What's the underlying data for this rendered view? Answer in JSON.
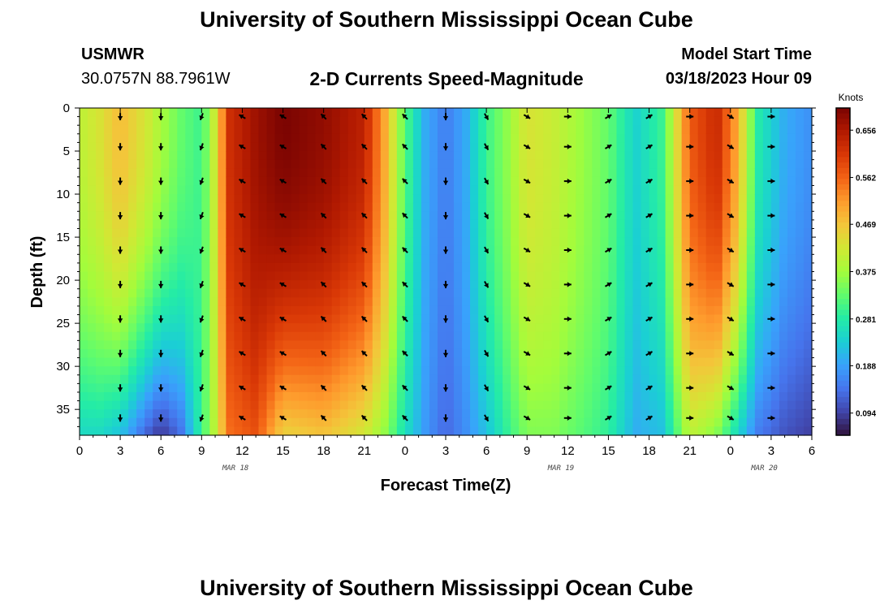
{
  "header": {
    "title": "University of Southern Mississippi Ocean Cube",
    "station_id": "USMWR",
    "station_location": "30.0757N  88.7961W",
    "subtitle": "2-D Currents Speed-Magnitude",
    "model_start_label": "Model Start Time",
    "model_start_time": "03/18/2023 Hour 09"
  },
  "footer": {
    "title": "University of Southern Mississippi Ocean Cube"
  },
  "chart_data": {
    "type": "heatmap",
    "title": "2-D Currents Speed-Magnitude",
    "xlabel": "Forecast Time(Z)",
    "ylabel": "Depth (ft)",
    "x_hours_range": [
      0,
      54
    ],
    "x_tick_labels": [
      "0",
      "3",
      "6",
      "9",
      "12",
      "15",
      "18",
      "21",
      "0",
      "3",
      "6",
      "9",
      "12",
      "15",
      "18",
      "21",
      "0",
      "3",
      "6"
    ],
    "x_ticks_hours": [
      0,
      3,
      6,
      9,
      12,
      15,
      18,
      21,
      24,
      27,
      30,
      33,
      36,
      39,
      42,
      45,
      48,
      51,
      54
    ],
    "date_labels": [
      {
        "text": "MAR 18",
        "hour": 11.5
      },
      {
        "text": "MAR 19",
        "hour": 35.5
      },
      {
        "text": "MAR 20",
        "hour": 50.5
      }
    ],
    "y_range_ft": [
      0,
      38
    ],
    "y_tick_labels": [
      "0",
      "5",
      "10",
      "15",
      "20",
      "25",
      "30",
      "35"
    ],
    "y_ticks_ft": [
      0,
      5,
      10,
      15,
      20,
      25,
      30,
      35
    ],
    "colorbar": {
      "units": "Knots",
      "min": 0.05,
      "max": 0.7,
      "tick_labels": [
        "0.656",
        "0.562",
        "0.469",
        "0.375",
        "0.281",
        "0.188",
        "0.094"
      ],
      "tick_values": [
        0.656,
        0.562,
        0.469,
        0.375,
        0.281,
        0.188,
        0.094
      ]
    },
    "vector_times_hours": [
      3,
      6,
      9,
      12,
      15,
      18,
      21,
      24,
      27,
      30,
      33,
      36,
      39,
      42,
      45,
      48,
      51
    ],
    "vector_depths_ft": [
      1,
      4.5,
      8.5,
      12.5,
      16.5,
      20.5,
      24.5,
      28.5,
      32.5,
      36
    ],
    "vector_direction_deg_by_time": [
      180,
      180,
      200,
      300,
      300,
      315,
      315,
      315,
      180,
      150,
      120,
      90,
      60,
      60,
      90,
      120,
      90
    ],
    "speed_profile": [
      {
        "hour": 0,
        "surface": 0.4,
        "bottom": 0.25
      },
      {
        "hour": 1.5,
        "surface": 0.43,
        "bottom": 0.25
      },
      {
        "hour": 3,
        "surface": 0.48,
        "bottom": 0.22
      },
      {
        "hour": 5,
        "surface": 0.42,
        "bottom": 0.12
      },
      {
        "hour": 6,
        "surface": 0.38,
        "bottom": 0.08
      },
      {
        "hour": 7.5,
        "surface": 0.33,
        "bottom": 0.14
      },
      {
        "hour": 9,
        "surface": 0.3,
        "bottom": 0.3
      },
      {
        "hour": 10,
        "surface": 0.42,
        "bottom": 0.4
      },
      {
        "hour": 11,
        "surface": 0.62,
        "bottom": 0.55
      },
      {
        "hour": 13,
        "surface": 0.67,
        "bottom": 0.58
      },
      {
        "hour": 15,
        "surface": 0.7,
        "bottom": 0.45
      },
      {
        "hour": 18,
        "surface": 0.68,
        "bottom": 0.47
      },
      {
        "hour": 21,
        "surface": 0.64,
        "bottom": 0.42
      },
      {
        "hour": 22.5,
        "surface": 0.5,
        "bottom": 0.36
      },
      {
        "hour": 24,
        "surface": 0.32,
        "bottom": 0.26
      },
      {
        "hour": 25.5,
        "surface": 0.2,
        "bottom": 0.18
      },
      {
        "hour": 27,
        "surface": 0.15,
        "bottom": 0.13
      },
      {
        "hour": 28.5,
        "surface": 0.2,
        "bottom": 0.17
      },
      {
        "hour": 30,
        "surface": 0.3,
        "bottom": 0.22
      },
      {
        "hour": 31.5,
        "surface": 0.36,
        "bottom": 0.29
      },
      {
        "hour": 33,
        "surface": 0.43,
        "bottom": 0.35
      },
      {
        "hour": 35,
        "surface": 0.41,
        "bottom": 0.35
      },
      {
        "hour": 37,
        "surface": 0.37,
        "bottom": 0.32
      },
      {
        "hour": 39,
        "surface": 0.33,
        "bottom": 0.29
      },
      {
        "hour": 41,
        "surface": 0.24,
        "bottom": 0.2
      },
      {
        "hour": 43,
        "surface": 0.3,
        "bottom": 0.22
      },
      {
        "hour": 45,
        "surface": 0.57,
        "bottom": 0.4
      },
      {
        "hour": 47,
        "surface": 0.63,
        "bottom": 0.35
      },
      {
        "hour": 48.5,
        "surface": 0.5,
        "bottom": 0.25
      },
      {
        "hour": 50,
        "surface": 0.28,
        "bottom": 0.15
      },
      {
        "hour": 52,
        "surface": 0.2,
        "bottom": 0.11
      },
      {
        "hour": 54,
        "surface": 0.17,
        "bottom": 0.09
      }
    ]
  },
  "colors": {
    "scale": [
      "#30123b",
      "#4145ab",
      "#4675ed",
      "#39a2fc",
      "#1bcfd4",
      "#24eca6",
      "#61fc6c",
      "#a4fc3b",
      "#d1e834",
      "#f3c63a",
      "#fe9b2d",
      "#f36315",
      "#d93806",
      "#b11901",
      "#7a0402"
    ]
  }
}
